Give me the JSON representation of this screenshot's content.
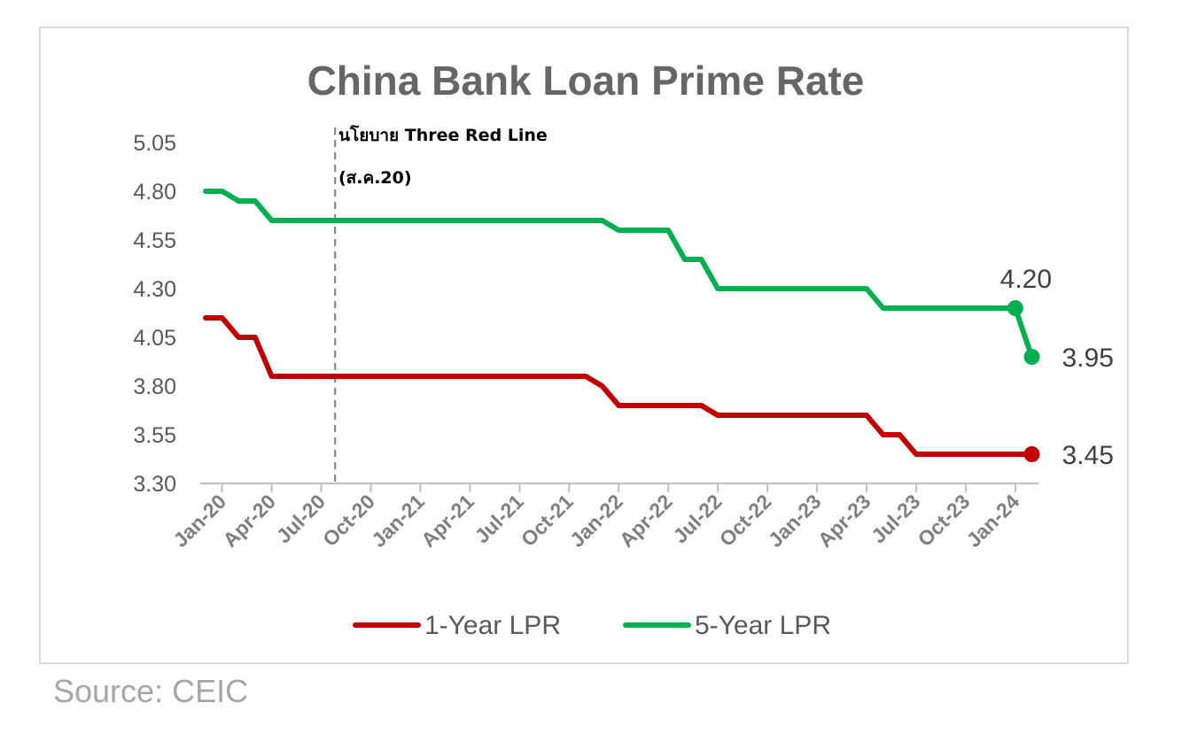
{
  "source": "Source:  CEIC",
  "colors": {
    "red": "#c00000",
    "green": "#00b050",
    "axis": "#bfbfbf",
    "text": "#595959"
  },
  "chart_data": {
    "type": "line",
    "title": "China Bank Loan Prime Rate",
    "xlabel": "",
    "ylabel": "",
    "ylim": [
      3.3,
      5.05
    ],
    "yticks": [
      "5.05",
      "4.80",
      "4.55",
      "4.30",
      "4.05",
      "3.80",
      "3.55",
      "3.30"
    ],
    "xticks": [
      "Jan-20",
      "Apr-20",
      "Jul-20",
      "Oct-20",
      "Jan-21",
      "Apr-21",
      "Jul-21",
      "Oct-21",
      "Jan-22",
      "Apr-22",
      "Jul-22",
      "Oct-22",
      "Jan-23",
      "Apr-23",
      "Jul-23",
      "Oct-23",
      "Jan-24"
    ],
    "x_start": "Dec-19",
    "grid": false,
    "legend": "bottom",
    "annotation": {
      "line1": "นโยบาย Three Red Line",
      "line2": "(ส.ค.20)",
      "at": "Aug-20"
    },
    "series": [
      {
        "name": "1-Year LPR",
        "color": "#c00000",
        "values": [
          4.15,
          4.15,
          4.05,
          4.05,
          3.85,
          3.85,
          3.85,
          3.85,
          3.85,
          3.85,
          3.85,
          3.85,
          3.85,
          3.85,
          3.85,
          3.85,
          3.85,
          3.85,
          3.85,
          3.85,
          3.85,
          3.85,
          3.85,
          3.85,
          3.8,
          3.7,
          3.7,
          3.7,
          3.7,
          3.7,
          3.7,
          3.65,
          3.65,
          3.65,
          3.65,
          3.65,
          3.65,
          3.65,
          3.65,
          3.65,
          3.65,
          3.55,
          3.55,
          3.45,
          3.45,
          3.45,
          3.45,
          3.45,
          3.45,
          3.45,
          3.45
        ],
        "end_label": "3.45"
      },
      {
        "name": "5-Year LPR",
        "color": "#00b050",
        "values": [
          4.8,
          4.8,
          4.75,
          4.75,
          4.65,
          4.65,
          4.65,
          4.65,
          4.65,
          4.65,
          4.65,
          4.65,
          4.65,
          4.65,
          4.65,
          4.65,
          4.65,
          4.65,
          4.65,
          4.65,
          4.65,
          4.65,
          4.65,
          4.65,
          4.65,
          4.6,
          4.6,
          4.6,
          4.6,
          4.45,
          4.45,
          4.3,
          4.3,
          4.3,
          4.3,
          4.3,
          4.3,
          4.3,
          4.3,
          4.3,
          4.3,
          4.2,
          4.2,
          4.2,
          4.2,
          4.2,
          4.2,
          4.2,
          4.2,
          4.2,
          3.95
        ],
        "labels": [
          {
            "index": 49,
            "text": "4.20"
          },
          {
            "index": 50,
            "text": "3.95"
          }
        ]
      }
    ]
  }
}
